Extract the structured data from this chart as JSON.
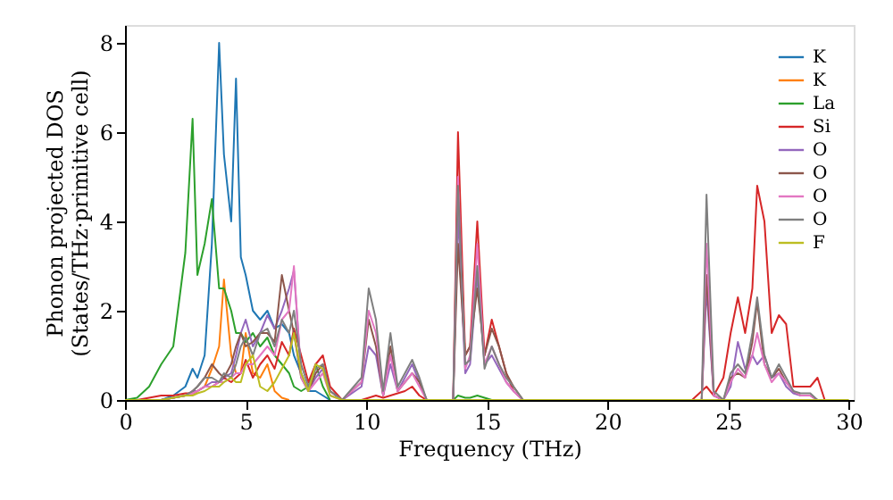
{
  "chart_data": {
    "type": "line",
    "xlabel": "Frequency (THz)",
    "ylabel": "Phonon projected DOS\n(States/THz·primitive cell)",
    "x": [
      0,
      0.5,
      1,
      1.5,
      2,
      2.5,
      2.8,
      3,
      3.3,
      3.6,
      3.9,
      4.1,
      4.4,
      4.6,
      4.8,
      5,
      5.3,
      5.6,
      5.9,
      6.2,
      6.5,
      6.8,
      7,
      7.3,
      7.6,
      7.9,
      8.2,
      8.5,
      9,
      9.8,
      10.1,
      10.4,
      10.7,
      11,
      11.3,
      11.6,
      11.9,
      12.2,
      12.5,
      13.3,
      13.6,
      13.8,
      14.1,
      14.3,
      14.6,
      14.9,
      15.2,
      15.5,
      15.8,
      16.1,
      16.5,
      20,
      23.5,
      23.9,
      24.1,
      24.4,
      24.8,
      25.1,
      25.4,
      25.7,
      26.0,
      26.2,
      26.5,
      26.8,
      27.1,
      27.4,
      27.7,
      28.0,
      28.4,
      28.7,
      29,
      30
    ],
    "series": [
      {
        "name": "K",
        "color": "#1f77b4",
        "values": [
          null,
          null,
          null,
          0,
          0.1,
          0.3,
          0.7,
          0.5,
          1.0,
          3.5,
          8.0,
          5.5,
          4.0,
          7.2,
          3.2,
          2.8,
          2.0,
          1.8,
          2.0,
          1.6,
          1.7,
          1.5,
          1.0,
          0.6,
          0.2,
          0.2,
          0.1,
          0,
          null,
          null,
          null,
          null,
          null,
          null,
          null,
          null,
          null,
          null,
          null,
          null,
          null,
          null,
          null,
          null,
          null,
          null,
          null,
          null,
          null,
          null,
          null,
          null,
          null,
          null,
          null,
          null,
          null,
          null,
          null,
          null,
          null,
          null,
          null,
          null,
          null,
          null,
          null,
          null,
          null,
          null,
          null,
          null
        ]
      },
      {
        "name": "K",
        "color": "#ff7f0e",
        "values": [
          null,
          null,
          null,
          null,
          null,
          null,
          0.15,
          0.2,
          0.3,
          0.7,
          1.2,
          2.7,
          1.0,
          0.6,
          0.6,
          1.5,
          0.6,
          0.5,
          0.8,
          0.2,
          0.05,
          0,
          null,
          null,
          null,
          null,
          null,
          null,
          null,
          null,
          null,
          null,
          null,
          null,
          null,
          null,
          null,
          null,
          null,
          null,
          null,
          null,
          null,
          null,
          null,
          null,
          null,
          null,
          null,
          null,
          null,
          null,
          null,
          null,
          null,
          null,
          null,
          null,
          null,
          null,
          null,
          null,
          null,
          null,
          null,
          null,
          null,
          null,
          null,
          null,
          null,
          null
        ]
      },
      {
        "name": "La",
        "color": "#2ca02c",
        "values": [
          0,
          0.05,
          0.3,
          0.8,
          1.2,
          3.3,
          6.3,
          2.8,
          3.5,
          4.5,
          2.5,
          2.5,
          2.0,
          1.5,
          1.5,
          1.3,
          1.5,
          1.2,
          1.4,
          1.0,
          0.8,
          0.6,
          0.3,
          0.2,
          0.3,
          0.8,
          0.3,
          0,
          null,
          null,
          null,
          null,
          null,
          null,
          null,
          null,
          null,
          null,
          null,
          null,
          0,
          0.1,
          0.05,
          0.05,
          0.1,
          0.05,
          0,
          null,
          null,
          null,
          null,
          null,
          null,
          null,
          null,
          null,
          null,
          null,
          null,
          null,
          null,
          null,
          null,
          null,
          null,
          null,
          null,
          null,
          null,
          null,
          null,
          null
        ]
      },
      {
        "name": "Si",
        "color": "#d62728",
        "values": [
          null,
          0,
          0.05,
          0.1,
          0.1,
          0.15,
          0.15,
          0.2,
          0.3,
          0.3,
          0.4,
          0.5,
          0.4,
          0.5,
          0.6,
          0.9,
          0.5,
          0.8,
          1.0,
          0.7,
          1.3,
          1.0,
          1.6,
          1.0,
          0.4,
          0.8,
          1.0,
          0.3,
          0,
          0,
          0.05,
          0.1,
          0.05,
          0.1,
          0.15,
          0.2,
          0.3,
          0.1,
          0,
          null,
          0,
          6.0,
          1.0,
          1.2,
          4.0,
          1.0,
          1.8,
          1.2,
          0.6,
          0.2,
          0,
          null,
          0,
          0.2,
          0.3,
          0.1,
          0.5,
          1.5,
          2.3,
          1.5,
          2.5,
          4.8,
          4.0,
          1.5,
          1.9,
          1.7,
          0.3,
          0.3,
          0.3,
          0.5,
          0,
          null
        ]
      },
      {
        "name": "O",
        "color": "#9467bd",
        "values": [
          null,
          null,
          null,
          0,
          0.05,
          0.1,
          0.2,
          0.2,
          0.3,
          0.4,
          0.4,
          0.5,
          0.6,
          1.0,
          1.5,
          1.8,
          1.2,
          1.5,
          1.9,
          1.6,
          2.0,
          2.5,
          2.9,
          0.6,
          0.2,
          0.5,
          0.7,
          0.2,
          0,
          0.3,
          1.2,
          1.0,
          0.1,
          0.8,
          0.2,
          0.5,
          0.8,
          0.4,
          0,
          null,
          0,
          4.2,
          0.6,
          0.8,
          2.8,
          0.8,
          1.0,
          0.7,
          0.4,
          0.2,
          0,
          null,
          null,
          0,
          2.5,
          0.1,
          0,
          0.3,
          1.3,
          0.7,
          1.0,
          0.8,
          1.0,
          0.5,
          0.6,
          0.3,
          0.15,
          0.1,
          0.1,
          0,
          null,
          null
        ]
      },
      {
        "name": "O",
        "color": "#8c564b",
        "values": [
          null,
          null,
          null,
          0,
          0.05,
          0.1,
          0.2,
          0.3,
          0.5,
          0.8,
          0.6,
          0.5,
          0.8,
          1.2,
          1.5,
          1.2,
          1.3,
          1.5,
          1.5,
          1.3,
          2.8,
          2.0,
          1.5,
          0.5,
          0.2,
          0.6,
          0.8,
          0.2,
          0,
          0.4,
          1.8,
          1.2,
          0.1,
          1.2,
          0.2,
          0.4,
          0.6,
          0.4,
          0,
          null,
          0,
          3.5,
          1.0,
          1.2,
          2.5,
          1.0,
          1.6,
          1.2,
          0.6,
          0.3,
          0,
          null,
          null,
          0,
          2.8,
          0.1,
          0,
          0.5,
          0.6,
          0.5,
          1.3,
          2.2,
          0.8,
          0.5,
          0.7,
          0.4,
          0.2,
          0.1,
          0.1,
          0,
          null,
          null
        ]
      },
      {
        "name": "O",
        "color": "#e377c2",
        "values": [
          null,
          null,
          null,
          0,
          0.05,
          0.1,
          0.15,
          0.2,
          0.3,
          0.3,
          0.4,
          0.4,
          0.5,
          0.6,
          0.6,
          0.8,
          0.8,
          1.0,
          1.2,
          1.0,
          1.8,
          2.0,
          3.0,
          0.5,
          0.2,
          0.4,
          0.6,
          0.1,
          0,
          0.4,
          2.0,
          1.5,
          0.1,
          1.0,
          0.2,
          0.4,
          0.6,
          0.3,
          0,
          null,
          0,
          5.0,
          0.7,
          1.0,
          3.5,
          0.8,
          1.2,
          0.8,
          0.4,
          0.2,
          0,
          null,
          null,
          0,
          3.5,
          0.1,
          0,
          0.4,
          0.7,
          0.5,
          1.0,
          1.5,
          0.8,
          0.4,
          0.6,
          0.4,
          0.2,
          0.1,
          0.1,
          0,
          null,
          null
        ]
      },
      {
        "name": "O",
        "color": "#7f7f7f",
        "values": [
          null,
          null,
          null,
          0,
          0.05,
          0.1,
          0.2,
          0.3,
          0.5,
          0.5,
          0.4,
          0.6,
          0.5,
          0.8,
          1.2,
          1.4,
          1.0,
          1.5,
          1.6,
          1.2,
          1.8,
          1.5,
          2.0,
          0.8,
          0.3,
          0.7,
          0.8,
          0.2,
          0,
          0.5,
          2.5,
          1.8,
          0.2,
          1.5,
          0.3,
          0.6,
          0.9,
          0.5,
          0,
          null,
          0,
          4.8,
          0.8,
          0.9,
          3.0,
          0.7,
          1.2,
          0.8,
          0.5,
          0.3,
          0,
          null,
          null,
          0,
          4.6,
          0.2,
          0,
          0.6,
          0.8,
          0.6,
          1.5,
          2.3,
          1.0,
          0.5,
          0.8,
          0.5,
          0.2,
          0.15,
          0.15,
          0,
          null,
          null
        ]
      },
      {
        "name": "F",
        "color": "#bcbd22",
        "values": [
          0,
          0,
          0,
          0,
          0.05,
          0.1,
          0.1,
          0.15,
          0.2,
          0.3,
          0.3,
          0.4,
          0.5,
          0.4,
          0.4,
          0.8,
          1.0,
          0.3,
          0.2,
          0.4,
          0.7,
          1.0,
          1.5,
          0.6,
          0.2,
          0.8,
          0.7,
          0.1,
          0,
          0,
          0,
          0,
          0,
          0,
          0,
          0,
          0,
          0,
          0,
          0,
          0,
          0,
          0,
          0,
          0,
          0,
          0,
          0,
          0,
          0,
          0,
          0,
          0,
          0,
          0,
          0,
          0,
          0,
          0,
          0,
          0,
          0,
          0,
          0,
          0,
          0,
          0,
          0,
          0,
          0,
          0,
          0
        ]
      }
    ],
    "xlim": [
      0,
      30.2
    ],
    "ylim": [
      0,
      8.4
    ],
    "xticks": [
      0,
      5,
      10,
      15,
      20,
      25,
      30
    ],
    "yticks": [
      0,
      2,
      4,
      6,
      8
    ],
    "grid": false,
    "legend": "top right",
    "line_style": "solid",
    "marker": "none"
  }
}
